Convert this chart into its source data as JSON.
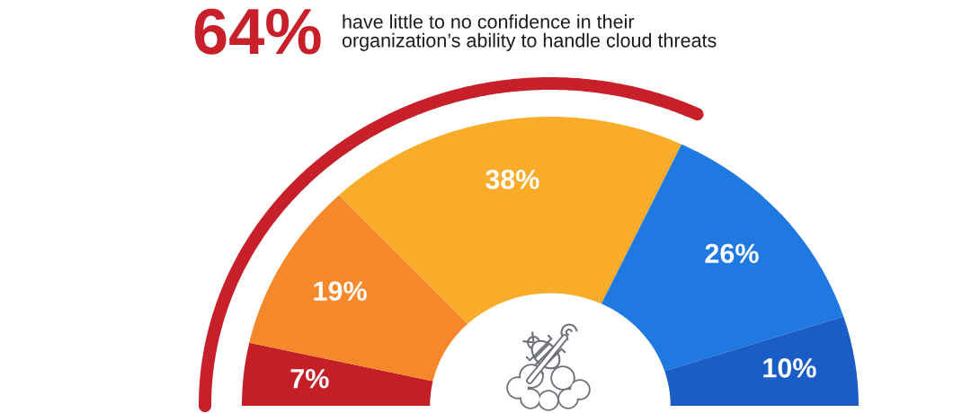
{
  "chart_data": {
    "type": "donut",
    "title": "64%",
    "subtitle": "have little to no confidence in their\norganization’s ability to handle cloud threats",
    "categories": [
      null,
      null,
      null,
      null,
      null
    ],
    "values": [
      7,
      19,
      38,
      26,
      10
    ],
    "colors": [
      "#c41f26",
      "#f4882b",
      "#f8ac2a",
      "#1f79e1",
      "#1a5dc6"
    ],
    "value_labels": [
      "7%",
      "19%",
      "38%",
      "26%",
      "10%"
    ]
  }
}
